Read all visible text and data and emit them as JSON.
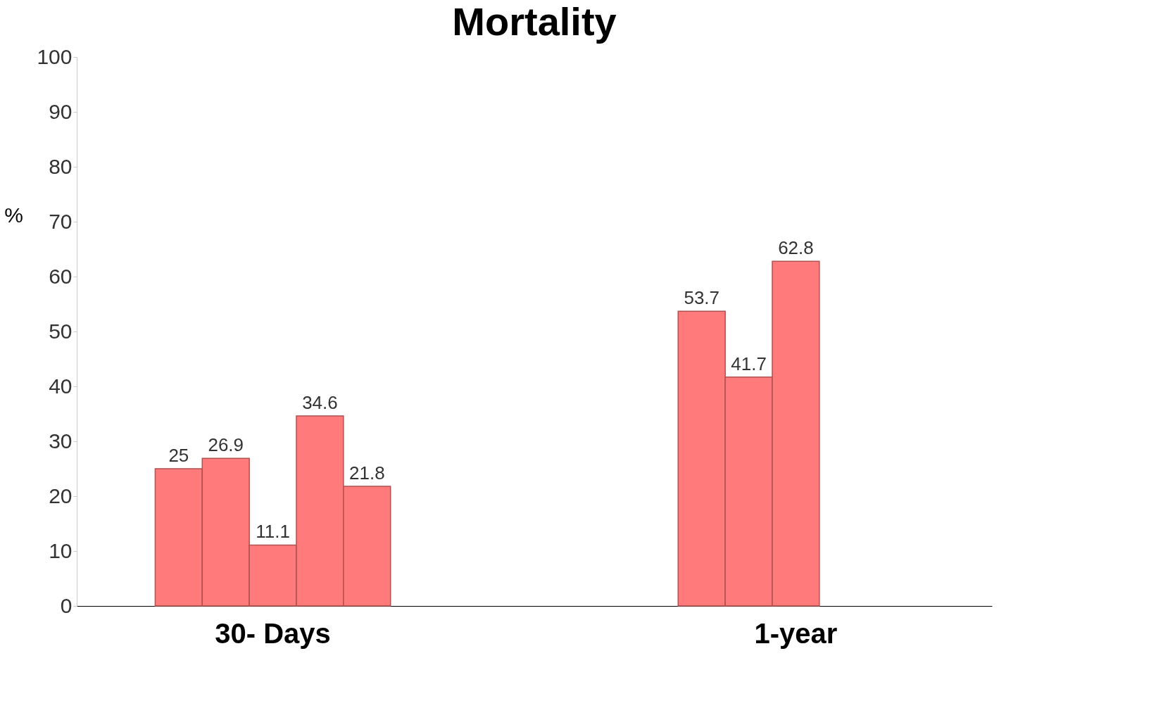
{
  "chart_data": {
    "type": "bar",
    "title": "Mortality",
    "ylabel": "%",
    "categories": [
      "30- Days",
      "1-year"
    ],
    "series": [
      {
        "color": "#ff7b7b",
        "values": [
          25,
          53.7
        ]
      },
      {
        "color": "#ff7b7b",
        "values": [
          26.9,
          41.7
        ]
      },
      {
        "color": "#ff7b7b",
        "values": [
          11.1,
          62.8
        ]
      },
      {
        "color": "#ff7b7b",
        "values": [
          34.6,
          null
        ]
      },
      {
        "color": "#ff7b7b",
        "values": [
          21.8,
          null
        ]
      }
    ],
    "data_labels": true,
    "ylim": [
      0,
      100
    ],
    "yticks": [
      0,
      10,
      20,
      30,
      40,
      50,
      60,
      70,
      80,
      90,
      100
    ],
    "grid": false,
    "legend": false
  }
}
